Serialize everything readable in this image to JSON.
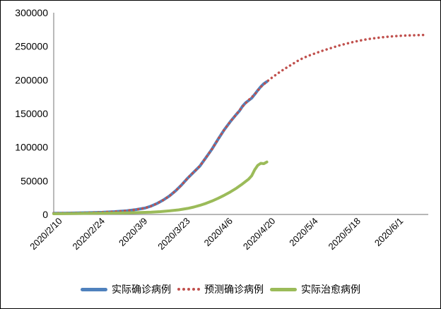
{
  "chart_data": {
    "type": "line",
    "title": "",
    "legend_position": "bottom",
    "grid": false,
    "x_axis": {
      "day_range": [
        -2,
        121
      ],
      "ticks": [
        {
          "day": 0,
          "label": "2020/2/10"
        },
        {
          "day": 14,
          "label": "2020/2/24"
        },
        {
          "day": 28,
          "label": "2020/3/9"
        },
        {
          "day": 42,
          "label": "2020/3/23"
        },
        {
          "day": 56,
          "label": "2020/4/6"
        },
        {
          "day": 70,
          "label": "2020/4/20"
        },
        {
          "day": 84,
          "label": "2020/5/4"
        },
        {
          "day": 98,
          "label": "2020/5/18"
        },
        {
          "day": 112,
          "label": "2020/6/1"
        }
      ]
    },
    "y_axis": {
      "lim": [
        0,
        300000
      ],
      "ticks": [
        {
          "value": 0,
          "label": "0"
        },
        {
          "value": 50000,
          "label": "50000"
        },
        {
          "value": 100000,
          "label": "100000"
        },
        {
          "value": 150000,
          "label": "150000"
        },
        {
          "value": 200000,
          "label": "200000"
        },
        {
          "value": 250000,
          "label": "250000"
        },
        {
          "value": 300000,
          "label": "300000"
        }
      ]
    },
    "axis_color": "#8C8C8C",
    "series": [
      {
        "name": "实际确诊病例",
        "key": "actual-confirmed",
        "color": "#4F81BD",
        "style": "solid",
        "points": [
          [
            -2,
            1900
          ],
          [
            2,
            2000
          ],
          [
            6,
            2300
          ],
          [
            10,
            2700
          ],
          [
            14,
            3200
          ],
          [
            18,
            4200
          ],
          [
            22,
            5600
          ],
          [
            25,
            7200
          ],
          [
            28,
            9500
          ],
          [
            30,
            12500
          ],
          [
            32,
            16500
          ],
          [
            34,
            21500
          ],
          [
            36,
            27500
          ],
          [
            38,
            35000
          ],
          [
            40,
            44000
          ],
          [
            42,
            54000
          ],
          [
            44,
            63000
          ],
          [
            46,
            72000
          ],
          [
            48,
            84500
          ],
          [
            50,
            97500
          ],
          [
            52,
            112000
          ],
          [
            54,
            126000
          ],
          [
            56,
            138000
          ],
          [
            58,
            149000
          ],
          [
            59,
            154000
          ],
          [
            60,
            161000
          ],
          [
            61,
            166000
          ],
          [
            62,
            169500
          ],
          [
            63,
            173000
          ],
          [
            64,
            178500
          ],
          [
            65,
            184500
          ],
          [
            66,
            190000
          ],
          [
            67,
            194500
          ],
          [
            68,
            197500
          ]
        ]
      },
      {
        "name": "预测确诊病例",
        "key": "predicted-confirmed",
        "color": "#C0504D",
        "style": "dotted",
        "points": [
          [
            -2,
            1900
          ],
          [
            2,
            2000
          ],
          [
            6,
            2300
          ],
          [
            10,
            2700
          ],
          [
            14,
            3200
          ],
          [
            18,
            4200
          ],
          [
            22,
            5600
          ],
          [
            25,
            7200
          ],
          [
            28,
            9500
          ],
          [
            30,
            12500
          ],
          [
            32,
            16500
          ],
          [
            34,
            21500
          ],
          [
            36,
            27500
          ],
          [
            38,
            35000
          ],
          [
            40,
            44000
          ],
          [
            42,
            54000
          ],
          [
            44,
            63000
          ],
          [
            46,
            72000
          ],
          [
            48,
            84500
          ],
          [
            50,
            97500
          ],
          [
            52,
            112000
          ],
          [
            54,
            126000
          ],
          [
            56,
            138000
          ],
          [
            58,
            149000
          ],
          [
            60,
            160500
          ],
          [
            62,
            170000
          ],
          [
            64,
            178500
          ],
          [
            66,
            189500
          ],
          [
            68,
            197500
          ],
          [
            70,
            204500
          ],
          [
            72,
            211000
          ],
          [
            74,
            217000
          ],
          [
            76,
            222500
          ],
          [
            78,
            228000
          ],
          [
            80,
            232800
          ],
          [
            82,
            236500
          ],
          [
            84,
            239800
          ],
          [
            86,
            243000
          ],
          [
            88,
            246000
          ],
          [
            90,
            248800
          ],
          [
            92,
            251500
          ],
          [
            94,
            253800
          ],
          [
            96,
            256000
          ],
          [
            98,
            258000
          ],
          [
            100,
            259800
          ],
          [
            102,
            261300
          ],
          [
            104,
            262500
          ],
          [
            106,
            263500
          ],
          [
            108,
            264400
          ],
          [
            110,
            265100
          ],
          [
            112,
            265700
          ],
          [
            114,
            266100
          ],
          [
            116,
            266400
          ],
          [
            118,
            266700
          ],
          [
            120,
            266900
          ]
        ]
      },
      {
        "name": "实际治愈病例",
        "key": "actual-cured",
        "color": "#9BBB59",
        "style": "solid",
        "points": [
          [
            -2,
            1100
          ],
          [
            4,
            1400
          ],
          [
            10,
            1700
          ],
          [
            16,
            2000
          ],
          [
            22,
            2400
          ],
          [
            26,
            2800
          ],
          [
            30,
            3400
          ],
          [
            33,
            4200
          ],
          [
            36,
            5300
          ],
          [
            39,
            6800
          ],
          [
            42,
            9000
          ],
          [
            44,
            11000
          ],
          [
            46,
            13500
          ],
          [
            48,
            16500
          ],
          [
            50,
            20000
          ],
          [
            52,
            24000
          ],
          [
            54,
            28500
          ],
          [
            56,
            33500
          ],
          [
            58,
            39000
          ],
          [
            60,
            45500
          ],
          [
            62,
            52500
          ],
          [
            63,
            57500
          ],
          [
            64,
            66500
          ],
          [
            65,
            73000
          ],
          [
            66,
            76000
          ],
          [
            67,
            75500
          ],
          [
            68,
            78000
          ]
        ]
      }
    ]
  }
}
